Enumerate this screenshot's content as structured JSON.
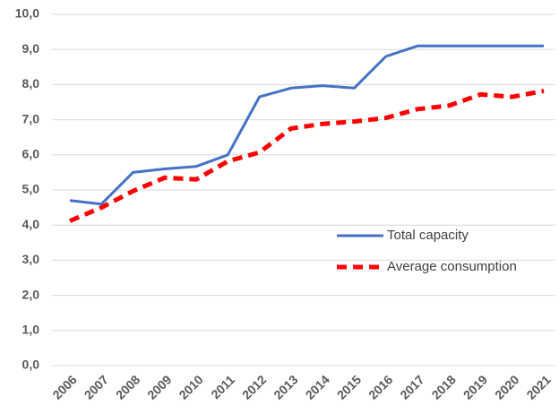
{
  "chart_data": {
    "type": "line",
    "categories": [
      "2006",
      "2007",
      "2008",
      "2009",
      "2010",
      "2011",
      "2012",
      "2013",
      "2014",
      "2015",
      "2016",
      "2017",
      "2018",
      "2019",
      "2020",
      "2021"
    ],
    "series": [
      {
        "name": "Total capacity",
        "color": "#4472c4",
        "dash": false,
        "values": [
          4.7,
          4.6,
          5.5,
          5.6,
          5.67,
          6.0,
          7.65,
          7.9,
          7.97,
          7.9,
          8.8,
          9.1,
          9.1,
          9.1,
          9.1,
          9.1
        ]
      },
      {
        "name": "Average consumption",
        "color": "#ff0000",
        "dash": true,
        "values": [
          4.12,
          4.5,
          4.97,
          5.35,
          5.3,
          5.82,
          6.07,
          6.75,
          6.88,
          6.95,
          7.05,
          7.3,
          7.4,
          7.72,
          7.65,
          7.82
        ]
      }
    ],
    "ylim": [
      0,
      10
    ],
    "yticks": [
      {
        "value": 0,
        "label": "0,0"
      },
      {
        "value": 1,
        "label": "1,0"
      },
      {
        "value": 2,
        "label": "2,0"
      },
      {
        "value": 3,
        "label": "3,0"
      },
      {
        "value": 4,
        "label": "4,0"
      },
      {
        "value": 5,
        "label": "5,0"
      },
      {
        "value": 6,
        "label": "6,0"
      },
      {
        "value": 7,
        "label": "7,0"
      },
      {
        "value": 8,
        "label": "8,0"
      },
      {
        "value": 9,
        "label": "9,0"
      },
      {
        "value": 10,
        "label": "10,0"
      }
    ],
    "grid": true,
    "legend": "right"
  }
}
